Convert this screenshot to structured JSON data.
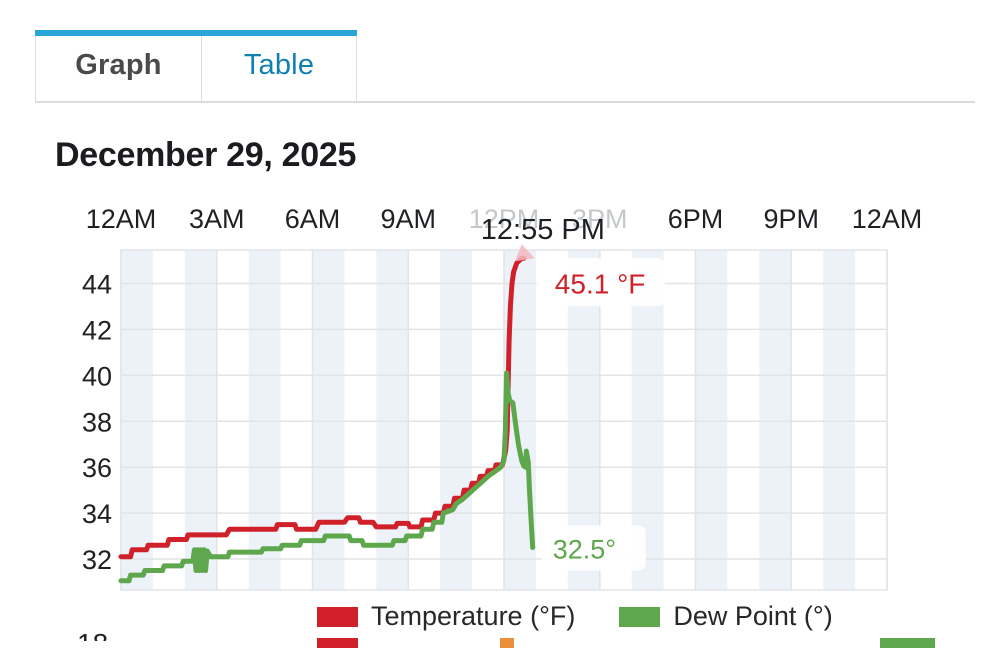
{
  "tabs": [
    {
      "label": "Graph",
      "active": true
    },
    {
      "label": "Table",
      "active": false
    }
  ],
  "date_title": "December 29, 2025",
  "partial_bottom_label": "18",
  "colors": {
    "accent": "#2aa5d8",
    "tab_active_text": "#4a4a4a",
    "tab_inactive_text": "#1080b0",
    "stripe": "#edf2f8",
    "grid": "#e2e4e7",
    "axis_text": "#202124",
    "dimmed_axis_text": "#c4c8cb",
    "hover_time_text": "#1d2023",
    "marker_pink": "#f4b7c1",
    "label_box": "#ffffff"
  },
  "chart_data": {
    "type": "line",
    "title": "December 29, 2025",
    "x_axis": {
      "position": "top",
      "tick_labels": [
        "12AM",
        "3AM",
        "6AM",
        "9AM",
        "12PM",
        "3PM",
        "6PM",
        "9PM",
        "12AM"
      ],
      "tick_hours": [
        0,
        3,
        6,
        9,
        12,
        15,
        18,
        21,
        24
      ],
      "dimmed_hours": [
        12,
        15
      ],
      "stripe_period_hours": 1
    },
    "y_axis": {
      "tick_values": [
        32,
        34,
        36,
        38,
        40,
        42,
        44
      ],
      "range": [
        30.65,
        45.46
      ]
    },
    "hover": {
      "time": "12:55 PM",
      "values": [
        {
          "series": "Temperature (°F)",
          "label": "45.1 °F"
        },
        {
          "series": "Dew Point (°)",
          "label": "32.5°"
        }
      ]
    },
    "legend": [
      {
        "label": "Temperature (°F)",
        "color": "#d0212a"
      },
      {
        "label": "Dew Point (°)",
        "color": "#5ea74c"
      }
    ],
    "clipped_next_legend_swatches": [
      "#d0212a",
      "#e8903a",
      "#5ea74c"
    ],
    "series": [
      {
        "name": "Temperature (°F)",
        "color": "#d0212a",
        "points": [
          [
            0,
            32.1
          ],
          [
            0.3,
            32.1
          ],
          [
            0.35,
            32.4
          ],
          [
            0.8,
            32.4
          ],
          [
            0.85,
            32.6
          ],
          [
            1.45,
            32.6
          ],
          [
            1.5,
            32.85
          ],
          [
            2.05,
            32.85
          ],
          [
            2.1,
            33.05
          ],
          [
            3.3,
            33.05
          ],
          [
            3.4,
            33.3
          ],
          [
            4.85,
            33.3
          ],
          [
            4.9,
            33.5
          ],
          [
            5.45,
            33.5
          ],
          [
            5.5,
            33.3
          ],
          [
            6.1,
            33.3
          ],
          [
            6.2,
            33.6
          ],
          [
            7.0,
            33.6
          ],
          [
            7.1,
            33.8
          ],
          [
            7.45,
            33.8
          ],
          [
            7.5,
            33.6
          ],
          [
            7.9,
            33.6
          ],
          [
            8.0,
            33.4
          ],
          [
            8.6,
            33.4
          ],
          [
            8.65,
            33.55
          ],
          [
            9.0,
            33.55
          ],
          [
            9.05,
            33.4
          ],
          [
            9.4,
            33.4
          ],
          [
            9.45,
            33.7
          ],
          [
            9.8,
            33.7
          ],
          [
            9.85,
            34.0
          ],
          [
            10.1,
            34.0
          ],
          [
            10.15,
            34.3
          ],
          [
            10.4,
            34.3
          ],
          [
            10.45,
            34.65
          ],
          [
            10.7,
            34.65
          ],
          [
            10.75,
            35.0
          ],
          [
            10.95,
            35.0
          ],
          [
            11.0,
            35.3
          ],
          [
            11.2,
            35.3
          ],
          [
            11.25,
            35.6
          ],
          [
            11.45,
            35.6
          ],
          [
            11.5,
            35.85
          ],
          [
            11.7,
            35.85
          ],
          [
            11.75,
            36.1
          ],
          [
            11.95,
            36.1
          ],
          [
            12.0,
            36.4
          ],
          [
            12.05,
            36.7
          ],
          [
            12.1,
            37.6
          ],
          [
            12.13,
            39.5
          ],
          [
            12.16,
            41.5
          ],
          [
            12.2,
            43.0
          ],
          [
            12.25,
            44.0
          ],
          [
            12.3,
            44.5
          ],
          [
            12.4,
            44.9
          ],
          [
            12.55,
            45.1
          ],
          [
            12.62,
            45.1
          ]
        ]
      },
      {
        "name": "Dew Point (°)",
        "color": "#5ea74c",
        "points": [
          [
            0,
            31.05
          ],
          [
            0.25,
            31.05
          ],
          [
            0.3,
            31.3
          ],
          [
            0.7,
            31.3
          ],
          [
            0.75,
            31.5
          ],
          [
            1.3,
            31.5
          ],
          [
            1.35,
            31.7
          ],
          [
            1.9,
            31.7
          ],
          [
            1.95,
            31.9
          ],
          [
            2.25,
            31.9
          ],
          [
            2.3,
            32.4
          ],
          [
            2.35,
            31.5
          ],
          [
            2.4,
            32.4
          ],
          [
            2.45,
            31.5
          ],
          [
            2.5,
            32.4
          ],
          [
            2.55,
            31.5
          ],
          [
            2.6,
            32.4
          ],
          [
            2.65,
            31.5
          ],
          [
            2.7,
            32.35
          ],
          [
            2.8,
            32.1
          ],
          [
            3.35,
            32.1
          ],
          [
            3.4,
            32.3
          ],
          [
            4.4,
            32.3
          ],
          [
            4.45,
            32.45
          ],
          [
            5.0,
            32.45
          ],
          [
            5.05,
            32.6
          ],
          [
            5.6,
            32.6
          ],
          [
            5.65,
            32.8
          ],
          [
            6.35,
            32.8
          ],
          [
            6.4,
            33.0
          ],
          [
            7.15,
            33.0
          ],
          [
            7.2,
            32.8
          ],
          [
            7.55,
            32.8
          ],
          [
            7.6,
            32.6
          ],
          [
            8.5,
            32.6
          ],
          [
            8.55,
            32.8
          ],
          [
            8.9,
            32.8
          ],
          [
            8.95,
            33.0
          ],
          [
            9.4,
            33.0
          ],
          [
            9.45,
            33.3
          ],
          [
            9.75,
            33.3
          ],
          [
            9.8,
            33.6
          ],
          [
            10.05,
            33.6
          ],
          [
            10.1,
            34.0
          ],
          [
            10.4,
            34.15
          ],
          [
            10.5,
            34.4
          ],
          [
            10.7,
            34.6
          ],
          [
            10.9,
            34.85
          ],
          [
            11.1,
            35.1
          ],
          [
            11.3,
            35.35
          ],
          [
            11.5,
            35.6
          ],
          [
            11.7,
            35.8
          ],
          [
            11.9,
            36.0
          ],
          [
            12.0,
            36.3
          ],
          [
            12.04,
            37.5
          ],
          [
            12.08,
            40.1
          ],
          [
            12.12,
            39.3
          ],
          [
            12.18,
            38.9
          ],
          [
            12.28,
            38.8
          ],
          [
            12.35,
            38.0
          ],
          [
            12.45,
            37.0
          ],
          [
            12.55,
            36.3
          ],
          [
            12.62,
            36.05
          ],
          [
            12.68,
            36.0
          ],
          [
            12.7,
            36.7
          ],
          [
            12.76,
            36.2
          ],
          [
            12.8,
            35.0
          ],
          [
            12.85,
            33.7
          ],
          [
            12.9,
            32.5
          ]
        ]
      }
    ]
  }
}
